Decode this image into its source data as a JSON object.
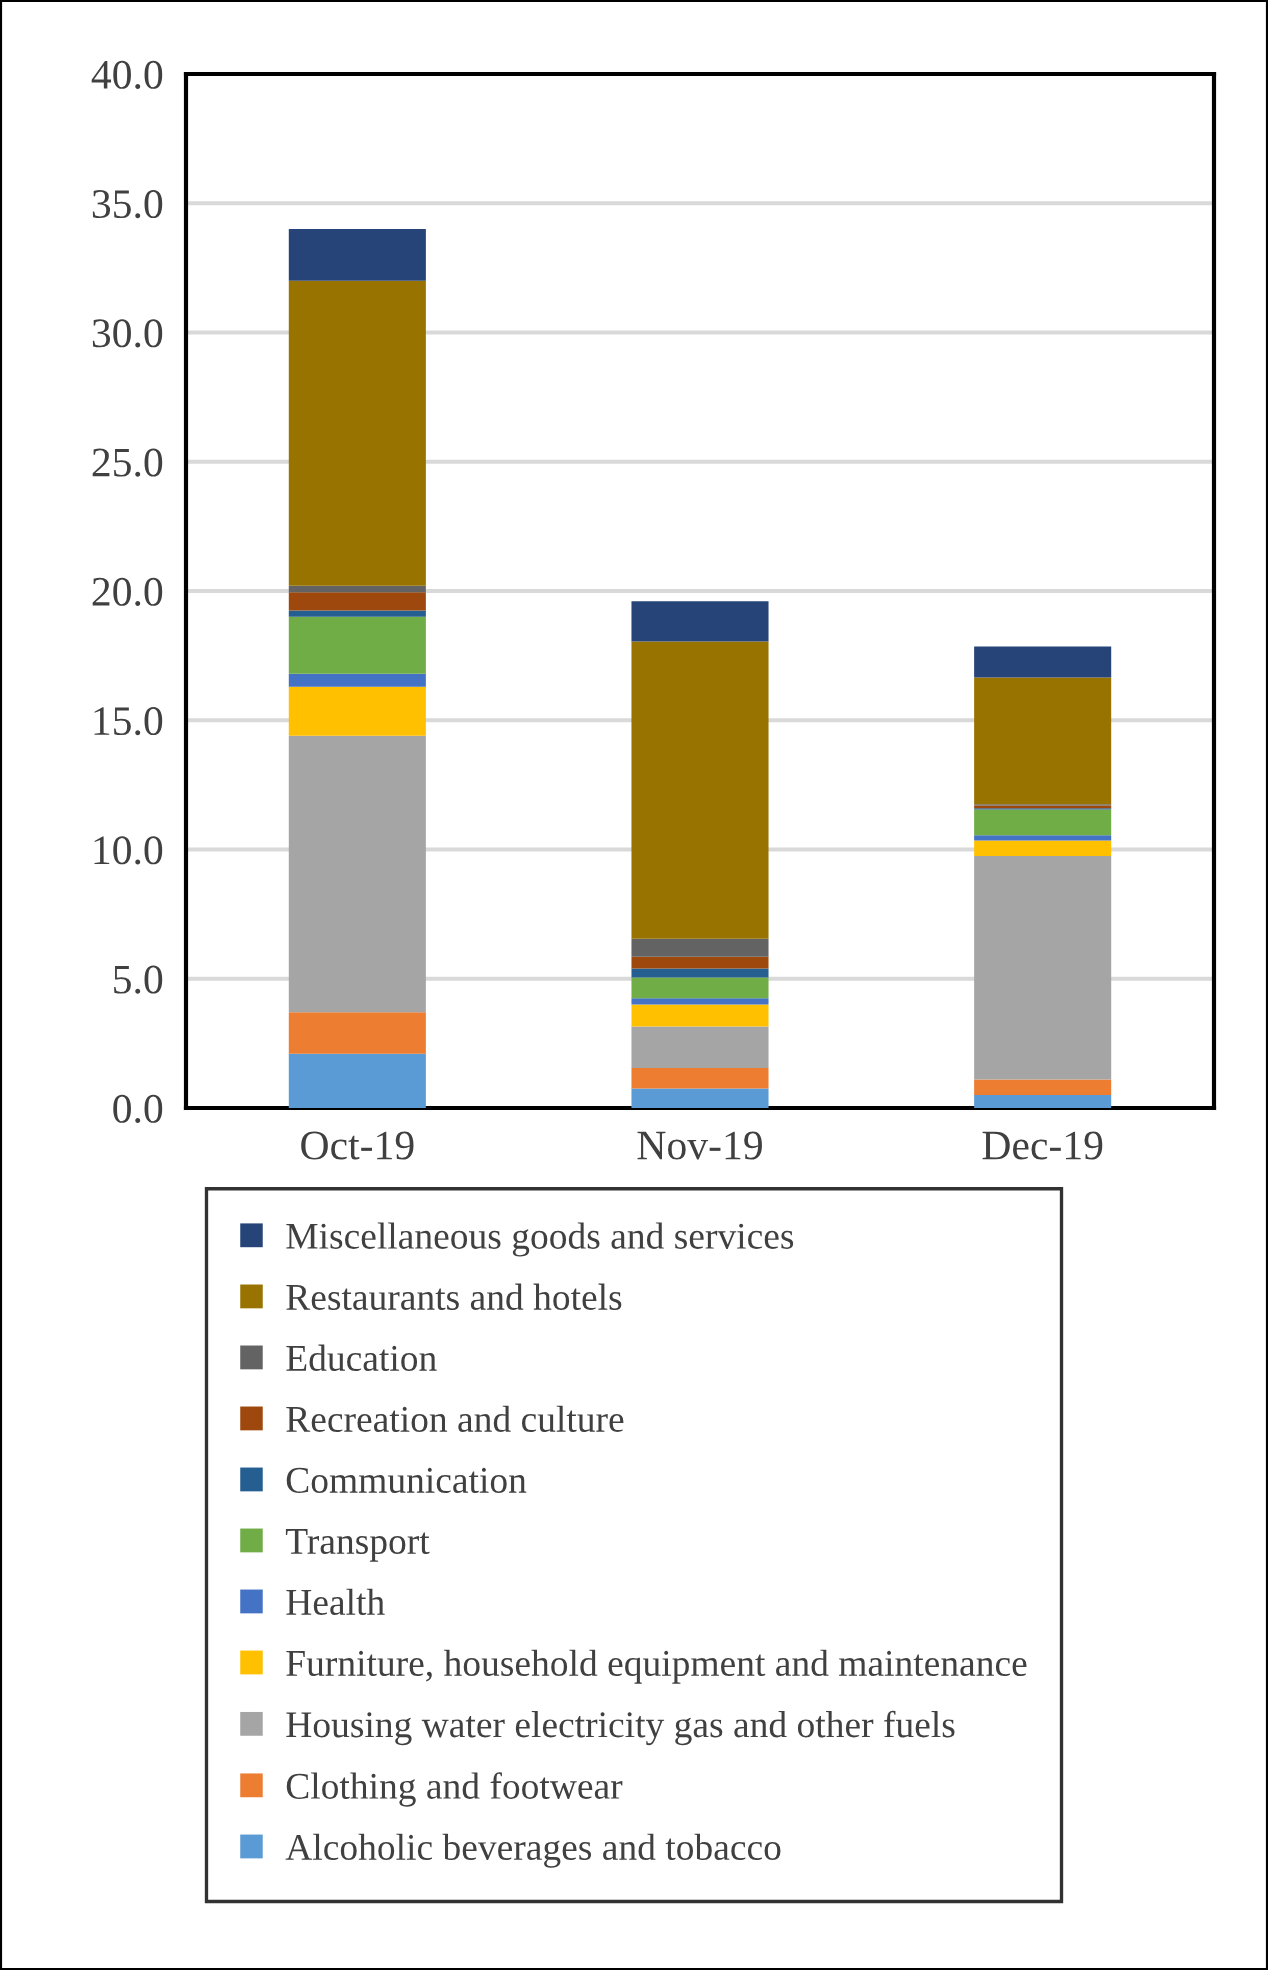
{
  "chart_data": {
    "type": "bar",
    "stacked": true,
    "categories": [
      "Oct-19",
      "Nov-19",
      "Dec-19"
    ],
    "series": [
      {
        "name": "Alcoholic beverages and tobacco",
        "color": "#5b9bd5",
        "values": [
          2.1,
          0.75,
          0.5
        ]
      },
      {
        "name": "Clothing and footwear",
        "color": "#ed7d31",
        "values": [
          1.6,
          0.8,
          0.6
        ]
      },
      {
        "name": "Housing water electricity gas and other fuels",
        "color": "#a5a5a5",
        "values": [
          10.7,
          1.6,
          8.65
        ]
      },
      {
        "name": "Furniture, household equipment and maintenance",
        "color": "#ffc000",
        "values": [
          1.9,
          0.85,
          0.6
        ]
      },
      {
        "name": "Health",
        "color": "#4472c4",
        "values": [
          0.5,
          0.25,
          0.2
        ]
      },
      {
        "name": "Transport",
        "color": "#70ad47",
        "values": [
          2.2,
          0.8,
          1.0
        ]
      },
      {
        "name": "Communication",
        "color": "#255e91",
        "values": [
          0.25,
          0.35,
          0.05
        ]
      },
      {
        "name": "Recreation and culture",
        "color": "#9e480e",
        "values": [
          0.7,
          0.45,
          0.1
        ]
      },
      {
        "name": "Education",
        "color": "#636363",
        "values": [
          0.25,
          0.7,
          0.05
        ]
      },
      {
        "name": "Restaurants and hotels",
        "color": "#997300",
        "values": [
          11.8,
          11.5,
          4.9
        ]
      },
      {
        "name": "Miscellaneous goods and services",
        "color": "#264478",
        "values": [
          2.0,
          1.55,
          1.2
        ]
      }
    ],
    "ylim": [
      0,
      40
    ],
    "yticks": [
      {
        "value": 0,
        "label": "0.0"
      },
      {
        "value": 5,
        "label": "5.0"
      },
      {
        "value": 10,
        "label": "10.0"
      },
      {
        "value": 15,
        "label": "15.0"
      },
      {
        "value": 20,
        "label": "20.0"
      },
      {
        "value": 25,
        "label": "25.0"
      },
      {
        "value": 30,
        "label": "30.0"
      },
      {
        "value": 35,
        "label": "35.0"
      },
      {
        "value": 40,
        "label": "40.0"
      }
    ],
    "grid": "y",
    "legend": "bottom"
  }
}
